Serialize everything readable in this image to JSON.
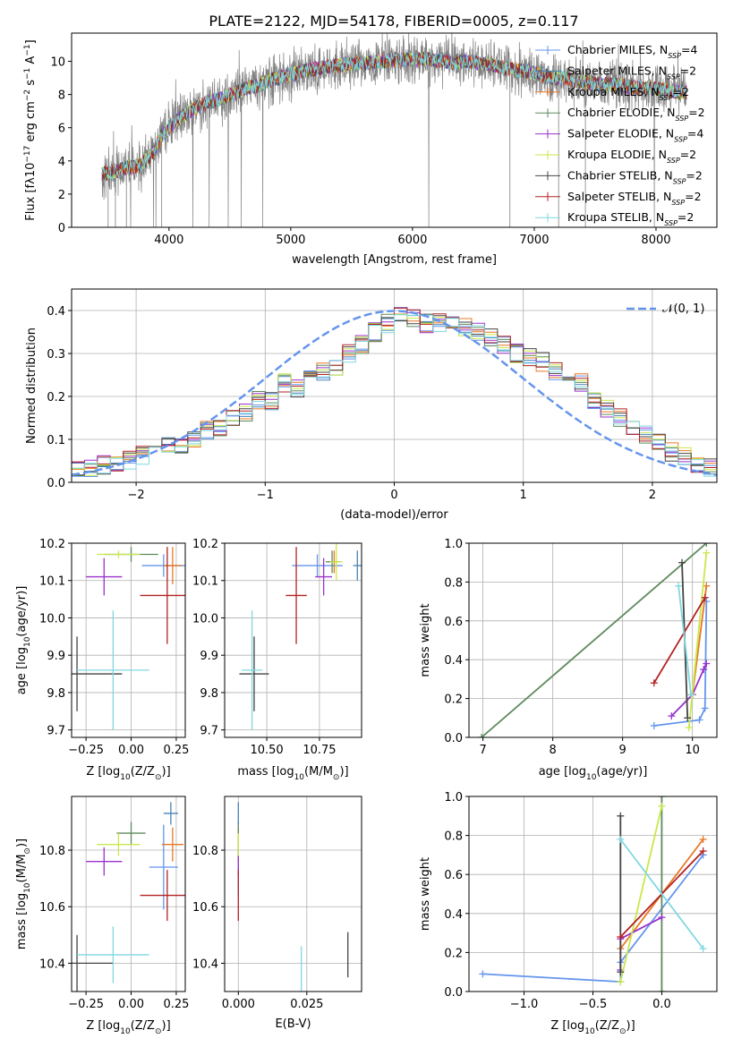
{
  "colors": {
    "grid": "#b0b0b0",
    "axis": "#000000",
    "data": "#808080",
    "normal_curve": "#6495ed"
  },
  "series_styles": [
    {
      "name": "Chabrier MILES",
      "color": "#6495ed"
    },
    {
      "name": "Salpeter MILES",
      "color": "#4682b4"
    },
    {
      "name": "Kroupa MILES",
      "color": "#e87722"
    },
    {
      "name": "Chabrier ELODIE",
      "color": "#5d8a5d"
    },
    {
      "name": "Salpeter ELODIE",
      "color": "#9932cc"
    },
    {
      "name": "Kroupa ELODIE",
      "color": "#c8e84a"
    },
    {
      "name": "Chabrier STELIB",
      "color": "#444444"
    },
    {
      "name": "Salpeter STELIB",
      "color": "#b22222"
    },
    {
      "name": "Kroupa STELIB",
      "color": "#7fd8e0"
    }
  ],
  "chart_data": [
    {
      "type": "line",
      "title": "PLATE=2122, MJD=54178, FIBERID=0005, z=0.117",
      "xlabel": "wavelength [Angstrom, rest frame]",
      "ylabel_parts": [
        "Flux [f",
        "λ",
        "10",
        "−17",
        " erg cm",
        "−2",
        " s",
        "−1",
        " A",
        "−1",
        "]"
      ],
      "xlim": [
        3200,
        8500
      ],
      "ylim": [
        0,
        11.7
      ],
      "xticks": [
        "4000",
        "5000",
        "6000",
        "7000",
        "8000"
      ],
      "xtick_values": [
        4000,
        5000,
        6000,
        7000,
        8000
      ],
      "yticks": [
        "0",
        "2",
        "4",
        "6",
        "8",
        "10"
      ],
      "ytick_values": [
        0,
        2,
        4,
        6,
        8,
        10
      ],
      "grid": false,
      "legend_position": "upper right",
      "legend": [
        {
          "label": "Chabrier MILES, N",
          "sub": "SSP",
          "suffix": "=4"
        },
        {
          "label": "Salpeter MILES, N",
          "sub": "SSP",
          "suffix": "=2"
        },
        {
          "label": "Kroupa MILES, N",
          "sub": "SSP",
          "suffix": "=2"
        },
        {
          "label": "Chabrier ELODIE, N",
          "sub": "SSP",
          "suffix": "=2"
        },
        {
          "label": "Salpeter ELODIE, N",
          "sub": "SSP",
          "suffix": "=4"
        },
        {
          "label": "Kroupa ELODIE, N",
          "sub": "SSP",
          "suffix": "=2"
        },
        {
          "label": "Chabrier STELIB, N",
          "sub": "SSP",
          "suffix": "=2"
        },
        {
          "label": "Salpeter STELIB, N",
          "sub": "SSP",
          "suffix": "=2"
        },
        {
          "label": "Kroupa STELIB, N",
          "sub": "SSP",
          "suffix": "=2"
        }
      ],
      "continuum_x": [
        3450,
        3550,
        3650,
        3750,
        3850,
        3950,
        4050,
        4150,
        4250,
        4350,
        4450,
        4550,
        4650,
        4750,
        4850,
        4950,
        5050,
        5150,
        5250,
        5350,
        5450,
        5550,
        5650,
        5750,
        5850,
        5950,
        6050,
        6150,
        6250,
        6350,
        6450,
        6550,
        6650,
        6750,
        6850,
        6950,
        7050,
        7150,
        7250,
        7350,
        7450,
        7550,
        7650,
        7750,
        7850,
        7950,
        8050,
        8150,
        8250
      ],
      "continuum_y": [
        3.2,
        3.3,
        3.6,
        3.7,
        4.3,
        5.6,
        6.4,
        6.9,
        7.3,
        7.6,
        7.8,
        8.1,
        8.4,
        8.6,
        8.9,
        9.1,
        9.3,
        9.5,
        9.6,
        9.7,
        9.8,
        9.9,
        9.9,
        10.0,
        10.1,
        10.1,
        10.1,
        10.1,
        10.0,
        9.9,
        10.0,
        9.9,
        9.8,
        9.6,
        9.5,
        9.4,
        9.2,
        9.0,
        9.0,
        8.8,
        8.7,
        8.6,
        8.6,
        8.5,
        8.4,
        8.4,
        8.3,
        8.2,
        8.1
      ]
    },
    {
      "type": "step",
      "xlabel": "(data-model)/error",
      "ylabel": "Normed distribution",
      "xlim": [
        -2.5,
        2.5
      ],
      "ylim": [
        0,
        0.45
      ],
      "xticks": [
        "−2",
        "−1",
        "0",
        "1",
        "2"
      ],
      "xtick_values": [
        -2,
        -1,
        0,
        1,
        2
      ],
      "yticks": [
        "0.0",
        "0.1",
        "0.2",
        "0.3",
        "0.4"
      ],
      "ytick_values": [
        0,
        0.1,
        0.2,
        0.3,
        0.4
      ],
      "grid": true,
      "legend_position": "upper right",
      "legend_label": "𝒩(0, 1)",
      "bin_edges_start": -2.5,
      "bin_width": 0.1,
      "hist_profile": [
        0.026,
        0.03,
        0.04,
        0.047,
        0.05,
        0.062,
        0.07,
        0.085,
        0.09,
        0.1,
        0.12,
        0.13,
        0.15,
        0.16,
        0.19,
        0.19,
        0.23,
        0.22,
        0.24,
        0.26,
        0.27,
        0.3,
        0.32,
        0.35,
        0.37,
        0.39,
        0.38,
        0.37,
        0.37,
        0.37,
        0.36,
        0.35,
        0.34,
        0.32,
        0.3,
        0.29,
        0.28,
        0.26,
        0.24,
        0.23,
        0.19,
        0.17,
        0.15,
        0.13,
        0.11,
        0.09,
        0.07,
        0.06,
        0.045,
        0.035
      ]
    },
    {
      "type": "errorbar",
      "xlabel_parts": [
        "Z [log",
        "10",
        "(Z/Z",
        "⊙",
        ")]"
      ],
      "ylabel_parts": [
        "age  [log",
        "10",
        "(age/yr)]"
      ],
      "xlim": [
        -0.33,
        0.3
      ],
      "ylim": [
        9.68,
        10.2
      ],
      "xticks": [
        "−0.25",
        "0.00",
        "0.25"
      ],
      "xtick_values": [
        -0.25,
        0,
        0.25
      ],
      "yticks": [
        "9.7",
        "9.8",
        "9.9",
        "10.0",
        "10.1",
        "10.2"
      ],
      "ytick_values": [
        9.7,
        9.8,
        9.9,
        10.0,
        10.1,
        10.2
      ],
      "grid": true,
      "points": [
        {
          "series": 0,
          "x": 0.18,
          "y": 10.14,
          "xerr": 0.12,
          "yerr": 0.03
        },
        {
          "series": 2,
          "x": 0.23,
          "y": 10.14,
          "xerr": 0.05,
          "yerr": 0.05
        },
        {
          "series": 3,
          "x": 0.0,
          "y": 10.17,
          "xerr": 0.15,
          "yerr": 0.02
        },
        {
          "series": 4,
          "x": -0.15,
          "y": 10.11,
          "xerr": 0.1,
          "yerr": 0.05
        },
        {
          "series": 5,
          "x": -0.07,
          "y": 10.17,
          "xerr": 0.12,
          "yerr": 0.01
        },
        {
          "series": 6,
          "x": -0.3,
          "y": 9.85,
          "xerr": 0.25,
          "yerr": 0.1
        },
        {
          "series": 7,
          "x": 0.2,
          "y": 10.06,
          "xerr": 0.15,
          "yerr": 0.13
        },
        {
          "series": 8,
          "x": -0.1,
          "y": 9.86,
          "xerr": 0.2,
          "yerr": 0.16
        }
      ]
    },
    {
      "type": "errorbar",
      "xlabel_parts": [
        "mass [log",
        "10",
        "(M/M",
        "⊙",
        ")]"
      ],
      "xlim": [
        10.3,
        10.95
      ],
      "ylim": [
        9.68,
        10.2
      ],
      "xticks": [
        "10.50",
        "10.75"
      ],
      "xtick_values": [
        10.5,
        10.75
      ],
      "yticks": [
        "9.7",
        "9.8",
        "9.9",
        "10.0",
        "10.1",
        "10.2"
      ],
      "ytick_values": [
        9.7,
        9.8,
        9.9,
        10.0,
        10.1,
        10.2
      ],
      "grid": true,
      "points": [
        {
          "series": 0,
          "x": 10.74,
          "y": 10.14,
          "xerr": 0.12,
          "yerr": 0.03
        },
        {
          "series": 2,
          "x": 10.82,
          "y": 10.15,
          "xerr": 0.03,
          "yerr": 0.03
        },
        {
          "series": 3,
          "x": 10.81,
          "y": 10.15,
          "xerr": 0.03,
          "yerr": 0.03
        },
        {
          "series": 4,
          "x": 10.77,
          "y": 10.11,
          "xerr": 0.04,
          "yerr": 0.05
        },
        {
          "series": 5,
          "x": 10.83,
          "y": 10.15,
          "xerr": 0.03,
          "yerr": 0.05
        },
        {
          "series": 6,
          "x": 10.44,
          "y": 9.85,
          "xerr": 0.07,
          "yerr": 0.1
        },
        {
          "series": 7,
          "x": 10.64,
          "y": 10.06,
          "xerr": 0.05,
          "yerr": 0.13
        },
        {
          "series": 8,
          "x": 10.43,
          "y": 9.86,
          "xerr": 0.05,
          "yerr": 0.16
        },
        {
          "series": 1,
          "x": 10.93,
          "y": 10.14,
          "xerr": 0.02,
          "yerr": 0.04
        }
      ]
    },
    {
      "type": "line",
      "xlabel_parts": [
        "age  [log",
        "10",
        "(age/yr)]"
      ],
      "ylabel": "mass weight",
      "xlim": [
        6.8,
        10.35
      ],
      "ylim": [
        0,
        1.0
      ],
      "xticks": [
        "7",
        "8",
        "9",
        "10"
      ],
      "xtick_values": [
        7,
        8,
        9,
        10
      ],
      "yticks": [
        "0.0",
        "0.2",
        "0.4",
        "0.6",
        "0.8",
        "1.0"
      ],
      "ytick_values": [
        0,
        0.2,
        0.4,
        0.6,
        0.8,
        1.0
      ],
      "grid": true,
      "series": [
        {
          "series": 0,
          "x": [
            9.45,
            10.1,
            10.18,
            10.2
          ],
          "y": [
            0.06,
            0.09,
            0.15,
            0.7
          ]
        },
        {
          "series": 2,
          "x": [
            10.0,
            10.2
          ],
          "y": [
            0.22,
            0.78
          ]
        },
        {
          "series": 3,
          "x": [
            6.98,
            10.2
          ],
          "y": [
            0.0,
            1.0
          ]
        },
        {
          "series": 4,
          "x": [
            9.7,
            10.0,
            10.16,
            10.2
          ],
          "y": [
            0.11,
            0.22,
            0.35,
            0.38
          ]
        },
        {
          "series": 5,
          "x": [
            9.95,
            10.2
          ],
          "y": [
            0.05,
            0.95
          ]
        },
        {
          "series": 6,
          "x": [
            9.85,
            9.93
          ],
          "y": [
            0.9,
            0.1
          ]
        },
        {
          "series": 7,
          "x": [
            9.45,
            10.18
          ],
          "y": [
            0.28,
            0.72
          ]
        },
        {
          "series": 8,
          "x": [
            9.8,
            9.98
          ],
          "y": [
            0.78,
            0.22
          ]
        }
      ]
    },
    {
      "type": "errorbar",
      "xlabel_parts": [
        "Z [log",
        "10",
        "(Z/Z",
        "⊙",
        ")]"
      ],
      "ylabel_parts": [
        "mass [log",
        "10",
        "(M/M",
        "⊙",
        ")]"
      ],
      "xlim": [
        -0.33,
        0.3
      ],
      "ylim": [
        10.3,
        10.99
      ],
      "xticks": [
        "−0.25",
        "0.00",
        "0.25"
      ],
      "xtick_values": [
        -0.25,
        0,
        0.25
      ],
      "yticks": [
        "10.4",
        "10.6",
        "10.8"
      ],
      "ytick_values": [
        10.4,
        10.6,
        10.8
      ],
      "grid": true,
      "points": [
        {
          "series": 0,
          "x": 0.18,
          "y": 10.74,
          "xerr": 0.08,
          "yerr": 0.15
        },
        {
          "series": 2,
          "x": 0.23,
          "y": 10.82,
          "xerr": 0.06,
          "yerr": 0.06
        },
        {
          "series": 3,
          "x": 0.0,
          "y": 10.86,
          "xerr": 0.08,
          "yerr": 0.04
        },
        {
          "series": 4,
          "x": -0.15,
          "y": 10.76,
          "xerr": 0.1,
          "yerr": 0.05
        },
        {
          "series": 5,
          "x": -0.07,
          "y": 10.82,
          "xerr": 0.12,
          "yerr": 0.04
        },
        {
          "series": 6,
          "x": -0.3,
          "y": 10.4,
          "xerr": 0.2,
          "yerr": 0.1
        },
        {
          "series": 7,
          "x": 0.2,
          "y": 10.64,
          "xerr": 0.15,
          "yerr": 0.09
        },
        {
          "series": 8,
          "x": -0.1,
          "y": 10.43,
          "xerr": 0.2,
          "yerr": 0.1
        },
        {
          "series": 1,
          "x": 0.22,
          "y": 10.93,
          "xerr": 0.04,
          "yerr": 0.04
        }
      ]
    },
    {
      "type": "errorbar",
      "xlabel": "E(B-V)",
      "xlim": [
        -0.005,
        0.045
      ],
      "ylim": [
        10.3,
        10.99
      ],
      "xticks": [
        "0.000",
        "0.025"
      ],
      "xtick_values": [
        0,
        0.025
      ],
      "yticks": [
        "10.4",
        "10.6",
        "10.8"
      ],
      "ytick_values": [
        10.4,
        10.6,
        10.8
      ],
      "grid": true,
      "points": [
        {
          "series": 0,
          "x": 0.0,
          "y": 10.74,
          "xerr": 0,
          "yerr": 0.1
        },
        {
          "series": 2,
          "x": 0.0,
          "y": 10.82,
          "xerr": 0,
          "yerr": 0.06
        },
        {
          "series": 3,
          "x": 0.0,
          "y": 10.86,
          "xerr": 0,
          "yerr": 0.04
        },
        {
          "series": 4,
          "x": 0.0,
          "y": 10.76,
          "xerr": 0,
          "yerr": 0.05
        },
        {
          "series": 5,
          "x": 0.0,
          "y": 10.82,
          "xerr": 0,
          "yerr": 0.04
        },
        {
          "series": 1,
          "x": 0.0,
          "y": 10.93,
          "xerr": 0,
          "yerr": 0.04
        },
        {
          "series": 7,
          "x": 0.0,
          "y": 10.64,
          "xerr": 0,
          "yerr": 0.09
        },
        {
          "series": 6,
          "x": 0.04,
          "y": 10.43,
          "xerr": 0,
          "yerr": 0.08
        },
        {
          "series": 8,
          "x": 0.023,
          "y": 10.38,
          "xerr": 0,
          "yerr": 0.08
        }
      ]
    },
    {
      "type": "line",
      "xlabel_parts": [
        "Z [log",
        "10",
        "(Z/Z",
        "⊙",
        ")]"
      ],
      "ylabel": "mass weight",
      "xlim": [
        -1.4,
        0.4
      ],
      "ylim": [
        0,
        1.0
      ],
      "xticks": [
        "−1.0",
        "−0.5",
        "0.0"
      ],
      "xtick_values": [
        -1,
        -0.5,
        0
      ],
      "yticks": [
        "0.0",
        "0.2",
        "0.4",
        "0.6",
        "0.8",
        "1.0"
      ],
      "ytick_values": [
        0,
        0.2,
        0.4,
        0.6,
        0.8,
        1.0
      ],
      "grid": true,
      "series": [
        {
          "series": 0,
          "x": [
            -1.3,
            -0.3,
            -0.3,
            0.3
          ],
          "y": [
            0.09,
            0.05,
            0.15,
            0.7
          ]
        },
        {
          "series": 2,
          "x": [
            -0.3,
            0.3
          ],
          "y": [
            0.22,
            0.78
          ]
        },
        {
          "series": 3,
          "x": [
            0.0,
            0.0
          ],
          "y": [
            0.0,
            1.0
          ]
        },
        {
          "series": 4,
          "x": [
            -0.3,
            -0.3,
            0.0
          ],
          "y": [
            0.11,
            0.27,
            0.38
          ]
        },
        {
          "series": 5,
          "x": [
            -0.3,
            0.0
          ],
          "y": [
            0.05,
            0.95
          ]
        },
        {
          "series": 6,
          "x": [
            -0.3,
            -0.3
          ],
          "y": [
            0.9,
            0.1
          ]
        },
        {
          "series": 7,
          "x": [
            -0.3,
            0.3
          ],
          "y": [
            0.28,
            0.72
          ]
        },
        {
          "series": 8,
          "x": [
            -0.3,
            0.3
          ],
          "y": [
            0.78,
            0.22
          ]
        }
      ]
    }
  ]
}
